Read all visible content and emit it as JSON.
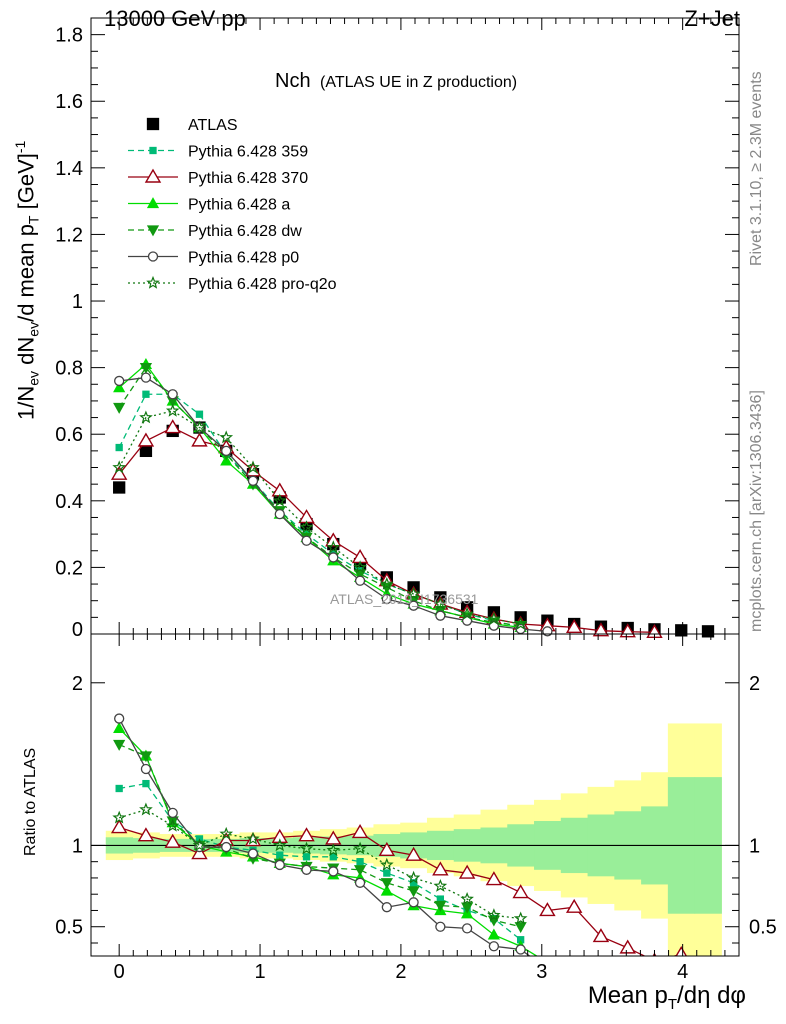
{
  "header": {
    "left": "13000 GeV pp",
    "right": "Z+Jet"
  },
  "side_labels": {
    "rivet": "Rivet 3.1.10, ≥ 2.3M events",
    "mcplots": "mcplots.cern.ch [arXiv:1306.3436]"
  },
  "watermark": "ATLAS_2019_I1736531",
  "colors": {
    "atlas": "#000000",
    "p359": "#00bb77",
    "p370": "#990011",
    "pa": "#00dd00",
    "pdw": "#119911",
    "pp0": "#444444",
    "pq2o": "#117711",
    "band_inner": "#99ee99",
    "band_outer": "#ffff99"
  },
  "chart_data": [
    {
      "type": "scatter",
      "title": "Nch",
      "subtitle": "(ATLAS UE in Z production)",
      "xlabel": "",
      "ylabel": "1/N_ev dN_ev/d mean p_T [GeV]^-1",
      "xlim": [
        -0.2,
        4.4
      ],
      "ylim": [
        0,
        1.85
      ],
      "yticks": [
        0.2,
        0.4,
        0.6,
        0.8,
        1,
        1.2,
        1.4,
        1.6,
        1.8
      ],
      "ytick_labels": [
        "0.2",
        "0.4",
        "0.6",
        "0.8",
        "1",
        "1.2",
        "1.4",
        "1.6",
        "1.8"
      ],
      "legend_position": "top-left",
      "x": [
        0.0,
        0.19,
        0.38,
        0.57,
        0.76,
        0.95,
        1.14,
        1.33,
        1.52,
        1.71,
        1.9,
        2.09,
        2.28,
        2.47,
        2.66,
        2.85,
        3.04,
        3.23,
        3.42,
        3.61,
        3.8,
        3.99,
        4.18
      ],
      "series": [
        {
          "name": "ATLAS",
          "key": "atlas",
          "marker": "square",
          "line": "none",
          "values": [
            0.44,
            0.55,
            0.61,
            0.62,
            0.55,
            0.48,
            0.41,
            0.33,
            0.27,
            0.21,
            0.17,
            0.14,
            0.11,
            0.08,
            0.065,
            0.05,
            0.04,
            0.03,
            0.022,
            0.018,
            0.014,
            0.011,
            0.008
          ]
        },
        {
          "name": "Pythia 6.428 359",
          "key": "p359",
          "marker": "square-small",
          "line": "dashed",
          "values": [
            0.56,
            0.72,
            0.72,
            0.66,
            0.54,
            0.46,
            0.37,
            0.3,
            0.24,
            0.19,
            0.15,
            0.12,
            0.09,
            0.06,
            0.04,
            0.02
          ]
        },
        {
          "name": "Pythia 6.428 370",
          "key": "p370",
          "marker": "triangle-open",
          "line": "solid",
          "values": [
            0.48,
            0.58,
            0.62,
            0.58,
            0.56,
            0.49,
            0.43,
            0.35,
            0.28,
            0.23,
            0.16,
            0.12,
            0.09,
            0.065,
            0.045,
            0.03,
            0.025,
            0.02,
            0.01,
            0.007,
            0.005
          ]
        },
        {
          "name": "Pythia 6.428 a",
          "key": "pa",
          "marker": "triangle",
          "line": "solid",
          "values": [
            0.74,
            0.81,
            0.7,
            0.62,
            0.52,
            0.45,
            0.36,
            0.29,
            0.22,
            0.17,
            0.12,
            0.09,
            0.07,
            0.05,
            0.03,
            0.02
          ]
        },
        {
          "name": "Pythia 6.428 dw",
          "key": "pdw",
          "marker": "triangle-down",
          "line": "dashed",
          "values": [
            0.68,
            0.8,
            0.7,
            0.62,
            0.54,
            0.45,
            0.37,
            0.29,
            0.23,
            0.18,
            0.14,
            0.1,
            0.07,
            0.05,
            0.035,
            0.025
          ]
        },
        {
          "name": "Pythia 6.428 p0",
          "key": "pp0",
          "marker": "circle-open",
          "line": "solid",
          "values": [
            0.76,
            0.77,
            0.72,
            0.62,
            0.55,
            0.46,
            0.36,
            0.28,
            0.23,
            0.16,
            0.105,
            0.085,
            0.055,
            0.04,
            0.025,
            0.015,
            0.008
          ]
        },
        {
          "name": "Pythia 6.428 pro-q2o",
          "key": "pq2o",
          "marker": "star",
          "line": "dotted",
          "values": [
            0.5,
            0.65,
            0.67,
            0.62,
            0.59,
            0.5,
            0.4,
            0.32,
            0.26,
            0.2,
            0.15,
            0.12,
            0.09,
            0.06,
            0.045,
            0.03
          ]
        }
      ]
    },
    {
      "type": "scatter",
      "title": "",
      "xlabel": "Mean p_T/dη dφ",
      "ylabel": "Ratio to ATLAS",
      "xlim": [
        -0.2,
        4.4
      ],
      "ylim": [
        0.32,
        2.3
      ],
      "xticks": [
        0,
        1,
        2,
        3,
        4
      ],
      "xtick_labels": [
        "0",
        "1",
        "2",
        "3",
        "4"
      ],
      "yticks": [
        0.5,
        1,
        2
      ],
      "ytick_labels": [
        "0.5",
        "1",
        "2"
      ],
      "x": [
        0.0,
        0.19,
        0.38,
        0.57,
        0.76,
        0.95,
        1.14,
        1.33,
        1.52,
        1.71,
        1.9,
        2.09,
        2.28,
        2.47,
        2.66,
        2.85,
        3.04,
        3.23,
        3.42,
        3.61,
        3.8,
        3.99,
        4.18
      ],
      "band_outer": [
        0.09,
        0.08,
        0.07,
        0.07,
        0.07,
        0.08,
        0.08,
        0.09,
        0.1,
        0.11,
        0.13,
        0.14,
        0.17,
        0.19,
        0.22,
        0.25,
        0.28,
        0.32,
        0.36,
        0.4,
        0.45,
        0.75,
        0.75
      ],
      "band_inner": [
        0.05,
        0.045,
        0.04,
        0.04,
        0.04,
        0.045,
        0.045,
        0.05,
        0.055,
        0.06,
        0.07,
        0.08,
        0.09,
        0.1,
        0.11,
        0.13,
        0.15,
        0.17,
        0.19,
        0.21,
        0.24,
        0.42,
        0.42
      ],
      "series": [
        {
          "name": "Pythia 6.428 359",
          "key": "p359",
          "marker": "square-small",
          "line": "dashed",
          "values": [
            1.35,
            1.38,
            1.15,
            1.04,
            0.99,
            0.97,
            0.94,
            0.93,
            0.93,
            0.9,
            0.83,
            0.77,
            0.67,
            0.6,
            0.55,
            0.42
          ]
        },
        {
          "name": "Pythia 6.428 370",
          "key": "p370",
          "marker": "triangle-open",
          "line": "solid",
          "values": [
            1.11,
            1.06,
            1.02,
            0.95,
            1.03,
            1.03,
            1.05,
            1.06,
            1.04,
            1.08,
            0.97,
            0.94,
            0.85,
            0.83,
            0.79,
            0.71,
            0.6,
            0.62,
            0.44,
            0.37,
            0.29,
            0.33
          ]
        },
        {
          "name": "Pythia 6.428 a",
          "key": "pa",
          "marker": "triangle",
          "line": "solid",
          "values": [
            1.72,
            1.55,
            1.14,
            1.0,
            0.96,
            0.93,
            0.89,
            0.87,
            0.82,
            0.8,
            0.72,
            0.63,
            0.6,
            0.58,
            0.45,
            0.38,
            0.28
          ]
        },
        {
          "name": "Pythia 6.428 dw",
          "key": "pdw",
          "marker": "triangle-down",
          "line": "dashed",
          "values": [
            1.62,
            1.55,
            1.15,
            1.0,
            0.98,
            0.92,
            0.89,
            0.87,
            0.86,
            0.85,
            0.77,
            0.72,
            0.63,
            0.62,
            0.54,
            0.5
          ]
        },
        {
          "name": "Pythia 6.428 p0",
          "key": "pp0",
          "marker": "circle-open",
          "line": "solid",
          "values": [
            1.78,
            1.47,
            1.2,
            0.99,
            0.99,
            0.95,
            0.88,
            0.85,
            0.84,
            0.77,
            0.62,
            0.65,
            0.5,
            0.49,
            0.38,
            0.36,
            0.24
          ]
        },
        {
          "name": "Pythia 6.428 pro-q2o",
          "key": "pq2o",
          "marker": "star",
          "line": "dotted",
          "values": [
            1.17,
            1.22,
            1.12,
            1.0,
            1.07,
            1.04,
            1.0,
            0.98,
            0.97,
            0.98,
            0.88,
            0.8,
            0.75,
            0.67,
            0.57,
            0.55
          ]
        }
      ]
    }
  ]
}
